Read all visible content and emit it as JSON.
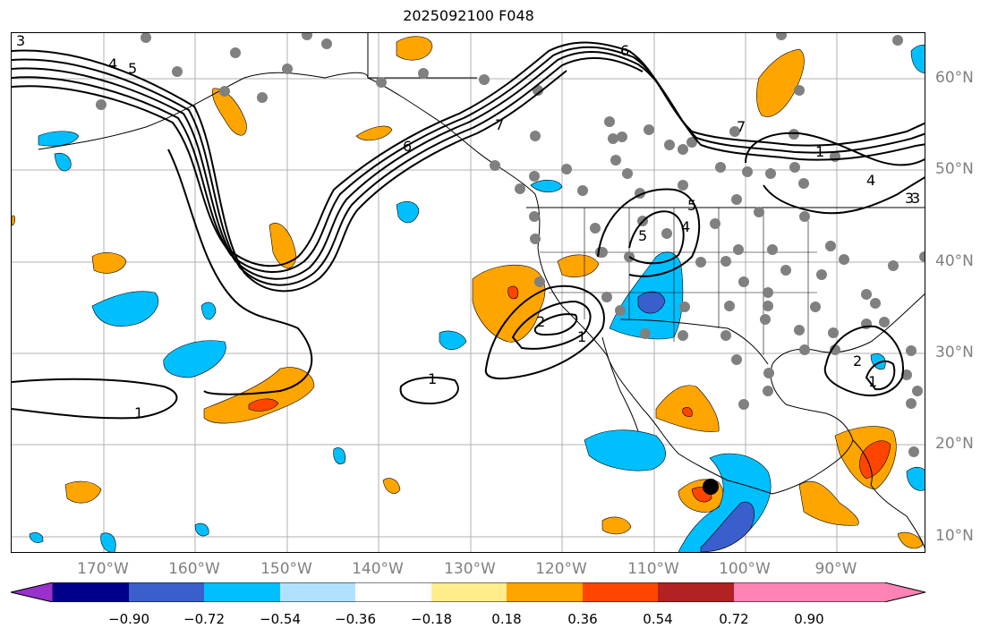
{
  "title": "2025092100 F048",
  "lon_labels": [
    "170°W",
    "160°W",
    "150°W",
    "140°W",
    "130°W",
    "120°W",
    "110°W",
    "100°W",
    "90°W"
  ],
  "lat_labels": [
    "60°N",
    "50°N",
    "40°N",
    "30°N",
    "20°N",
    "10°N"
  ],
  "contour_labels": [
    "3",
    "4",
    "5",
    "6",
    "7",
    "1",
    "1",
    "1",
    "1",
    "4",
    "3",
    "5",
    "4",
    "5",
    "7",
    "6",
    "2",
    "2",
    "1",
    "3"
  ],
  "colorbar": {
    "ticks": [
      "−0.90",
      "−0.72",
      "−0.54",
      "−0.36",
      "−0.18",
      "0.18",
      "0.36",
      "0.54",
      "0.72",
      "0.90"
    ],
    "colors": [
      "#9932cc",
      "#00008b",
      "#3a5fcd",
      "#00bfff",
      "#b0e2ff",
      "#ffffff",
      "#ffec8b",
      "#ffa500",
      "#ff4500",
      "#b22222",
      "#ff83b5"
    ]
  }
}
